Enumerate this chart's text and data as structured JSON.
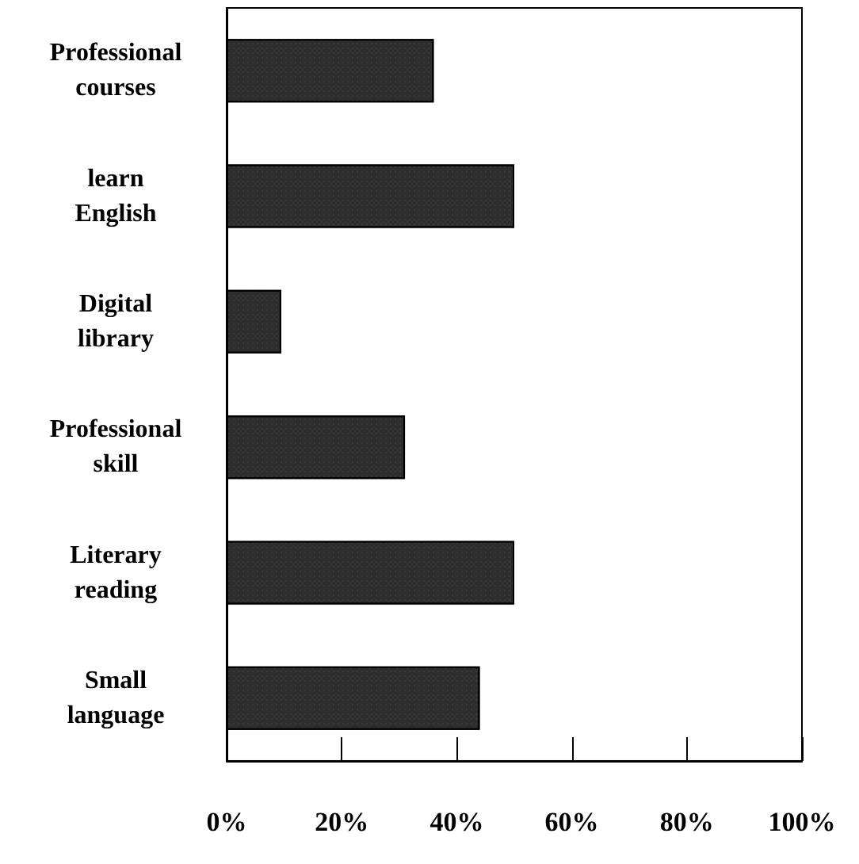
{
  "chart_data": {
    "type": "bar",
    "orientation": "horizontal",
    "categories": [
      "Professional\ncourses",
      "learn\nEnglish",
      "Digital\nlibrary",
      "Professional\nskill",
      "Literary\nreading",
      "Small\nlanguage"
    ],
    "values": [
      36,
      50,
      9.5,
      31,
      50,
      44
    ],
    "color": "#2e2e2e",
    "xlim": [
      0,
      100
    ],
    "xticks": [
      {
        "value": 0,
        "label": "0%"
      },
      {
        "value": 20,
        "label": "20%"
      },
      {
        "value": 40,
        "label": "40%"
      },
      {
        "value": 60,
        "label": "60%"
      },
      {
        "value": 80,
        "label": "80%"
      },
      {
        "value": 100,
        "label": "100%"
      }
    ],
    "grid": false
  }
}
